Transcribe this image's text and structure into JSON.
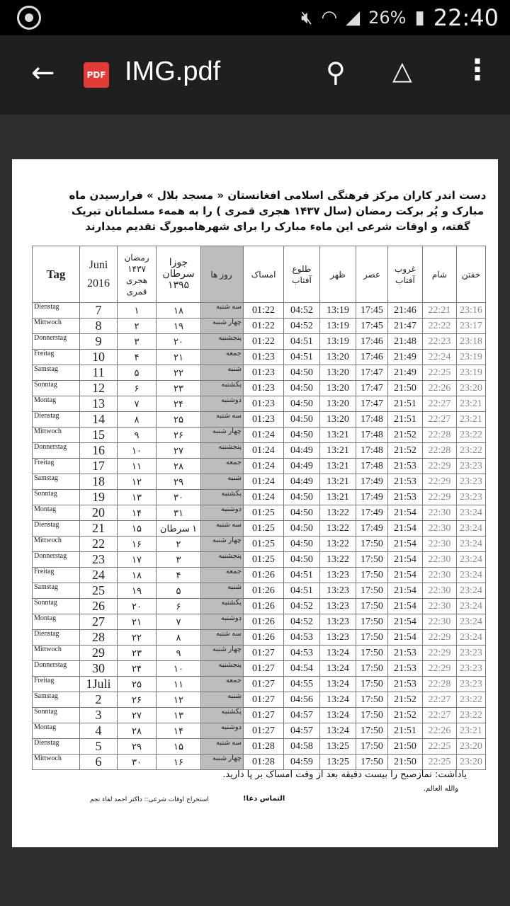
{
  "status_bar": {
    "battery": "26%",
    "time": "22:40",
    "icons": [
      "whatsapp-icon",
      "mute-icon",
      "wifi-icon",
      "signal-icon",
      "battery-icon"
    ]
  },
  "toolbar": {
    "title": "IMG.pdf",
    "pdf_badge": "PDF",
    "icons": [
      "back-arrow-icon",
      "pdf-icon",
      "search-icon",
      "drive-add-icon",
      "more-vert-icon"
    ]
  },
  "document": {
    "intro": "دست اندر کاران مرکز فرهنگی اسلامی افغانستان « مسجد بلال » فرارسیدن ماه مبارک و پُر برکت رمضان (سال ۱۴۳۷ هجری قمری ) را به همهء مسلمانان تبریک گفته، و اوقات شرعی این ماهء مبارک را برای شهرهامبورگ تقدیم میدارند",
    "headers": {
      "tag": "Tag",
      "juni": "Juni",
      "year": "2016",
      "ramadan": "رمضان ۱۴۳۷ هجری قمری",
      "solar": "جوزا سرطان ۱۳۹۵",
      "days": "روز ها",
      "imsak": "امساک",
      "sunrise": "طلوع آفتاب",
      "zuhr": "ظهر",
      "asr": "عصر",
      "sunset": "غروب آفتاب",
      "sham": "شام",
      "khuftan": "خفتن"
    },
    "rows": [
      [
        "Dienstag",
        "7",
        "۱",
        "۱۸",
        "سه شنبه",
        "01:22",
        "04:52",
        "13:19",
        "17:45",
        "21:46",
        "22:21",
        "23:16"
      ],
      [
        "Mittwoch",
        "8",
        "۲",
        "۱۹",
        "چهار شنبه",
        "01:22",
        "04:52",
        "13:19",
        "17:45",
        "21:47",
        "22:22",
        "23:17"
      ],
      [
        "Donnerstag",
        "9",
        "۳",
        "۲۰",
        "پنجشنبه",
        "01:22",
        "04:51",
        "13:19",
        "17:46",
        "21:48",
        "22:23",
        "23:18"
      ],
      [
        "Freitag",
        "10",
        "۴",
        "۲۱",
        "جمعه",
        "01:23",
        "04:51",
        "13:20",
        "17:46",
        "21:49",
        "22:24",
        "23:19"
      ],
      [
        "Samstag",
        "11",
        "۵",
        "۲۲",
        "شنبه",
        "01:23",
        "04:50",
        "13:20",
        "17:47",
        "21:49",
        "22:25",
        "23:19"
      ],
      [
        "Sonntag",
        "12",
        "۶",
        "۲۳",
        "یکشنبه",
        "01:23",
        "04:50",
        "13:20",
        "17:47",
        "21:50",
        "22:26",
        "23:20"
      ],
      [
        "Montag",
        "13",
        "۷",
        "۲۴",
        "دوشنبه",
        "01:23",
        "04:50",
        "13:20",
        "17:47",
        "21:51",
        "22:27",
        "23:21"
      ],
      [
        "Dienstag",
        "14",
        "۸",
        "۲۵",
        "سه شنبه",
        "01:23",
        "04:50",
        "13:20",
        "17:48",
        "21:51",
        "22:27",
        "23:21"
      ],
      [
        "Mittwoch",
        "15",
        "۹",
        "۲۶",
        "چهار شنبه",
        "01:24",
        "04:50",
        "13:21",
        "17:48",
        "21:52",
        "22:28",
        "23:22"
      ],
      [
        "Donnerstag",
        "16",
        "۱۰",
        "۲۷",
        "پنجشنبه",
        "01:24",
        "04:49",
        "13:21",
        "17:48",
        "21:52",
        "22:28",
        "23:22"
      ],
      [
        "Freitag",
        "17",
        "۱۱",
        "۲۸",
        "جمعه",
        "01:24",
        "04:49",
        "13:21",
        "17:48",
        "21:53",
        "22:29",
        "23:23"
      ],
      [
        "Samstag",
        "18",
        "۱۲",
        "۲۹",
        "شنبه",
        "01:24",
        "04:49",
        "13:21",
        "17:49",
        "21:53",
        "22:29",
        "23:23"
      ],
      [
        "Sonntag",
        "19",
        "۱۳",
        "۳۰",
        "یکشنبه",
        "01:24",
        "04:50",
        "13:21",
        "17:49",
        "21:53",
        "22:29",
        "23:23"
      ],
      [
        "Montag",
        "20",
        "۱۴",
        "۳۱",
        "دوشنبه",
        "01:25",
        "04:50",
        "13:22",
        "17:49",
        "21:54",
        "22:30",
        "23:24"
      ],
      [
        "Dienstag",
        "21",
        "۱۵",
        "۱ سرطان",
        "سه شنبه",
        "01:25",
        "04:50",
        "13:22",
        "17:49",
        "21:54",
        "22:30",
        "23:24"
      ],
      [
        "Mittwoch",
        "22",
        "۱۶",
        "۲",
        "چهار شنبه",
        "01:25",
        "04:50",
        "13:22",
        "17:50",
        "21:54",
        "22:30",
        "23:24"
      ],
      [
        "Donnerstag",
        "23",
        "۱۷",
        "۳",
        "پنجشنبه",
        "01:25",
        "04:50",
        "13:22",
        "17:50",
        "21:54",
        "22:30",
        "23:24"
      ],
      [
        "Freitag",
        "24",
        "۱۸",
        "۴",
        "جمعه",
        "01:26",
        "04:51",
        "13:23",
        "17:50",
        "21:54",
        "22:30",
        "23:24"
      ],
      [
        "Samstag",
        "25",
        "۱۹",
        "۵",
        "شنبه",
        "01:26",
        "04:51",
        "13:23",
        "17:50",
        "21:54",
        "22:30",
        "23:24"
      ],
      [
        "Sonntag",
        "26",
        "۲۰",
        "۶",
        "یکشنبه",
        "01:26",
        "04:52",
        "13:23",
        "17:50",
        "21:54",
        "22:30",
        "23:24"
      ],
      [
        "Montag",
        "27",
        "۲۱",
        "۷",
        "دوشنبه",
        "01:26",
        "04:52",
        "13:23",
        "17:50",
        "21:54",
        "22:30",
        "23:24"
      ],
      [
        "Dienstag",
        "28",
        "۲۲",
        "۸",
        "سه شنبه",
        "01:26",
        "04:53",
        "13:23",
        "17:50",
        "21:54",
        "22:29",
        "23:24"
      ],
      [
        "Mittwoch",
        "29",
        "۲۳",
        "۹",
        "چهار شنبه",
        "01:27",
        "04:53",
        "13:24",
        "17:50",
        "21:53",
        "22:29",
        "23:23"
      ],
      [
        "Donnerstag",
        "30",
        "۲۴",
        "۱۰",
        "پنجشنبه",
        "01:27",
        "04:54",
        "13:24",
        "17:50",
        "21:53",
        "22:29",
        "23:23"
      ],
      [
        "Freitag",
        "1Juli",
        "۲۵",
        "۱۱",
        "جمعه",
        "01:27",
        "04:55",
        "13:24",
        "17:50",
        "21:53",
        "22:28",
        "23:23"
      ],
      [
        "Samstag",
        "2",
        "۲۶",
        "۱۲",
        "شنبه",
        "01:27",
        "04:56",
        "13:24",
        "17:50",
        "21:52",
        "22:27",
        "23:22"
      ],
      [
        "Sonntag",
        "3",
        "۲۷",
        "۱۳",
        "یکشنبه",
        "01:27",
        "04:57",
        "13:24",
        "17:50",
        "21:52",
        "22:27",
        "23:22"
      ],
      [
        "Montag",
        "4",
        "۲۸",
        "۱۴",
        "دوشنبه",
        "01:27",
        "04:57",
        "13:24",
        "17:50",
        "21:51",
        "22:26",
        "23:21"
      ],
      [
        "Dienstag",
        "5",
        "۲۹",
        "۱۵",
        "سه شنبه",
        "01:28",
        "04:58",
        "13:25",
        "17:50",
        "21:50",
        "22:25",
        "23:20"
      ],
      [
        "Mittwoch",
        "6",
        "۳۰",
        "۱۶",
        "چهار شنبه",
        "01:28",
        "04:59",
        "13:25",
        "17:50",
        "21:50",
        "22:25",
        "23:20"
      ]
    ],
    "note": "یاداشت: نمازصبح را بیست دقیقه بعد از وقت امساک بر پا دارید.",
    "note2": "والله العالم.",
    "closing": "التماس دعا!",
    "credit": "استخراج اوقات شرعی:: داکتر احمد لقاء نجم"
  }
}
